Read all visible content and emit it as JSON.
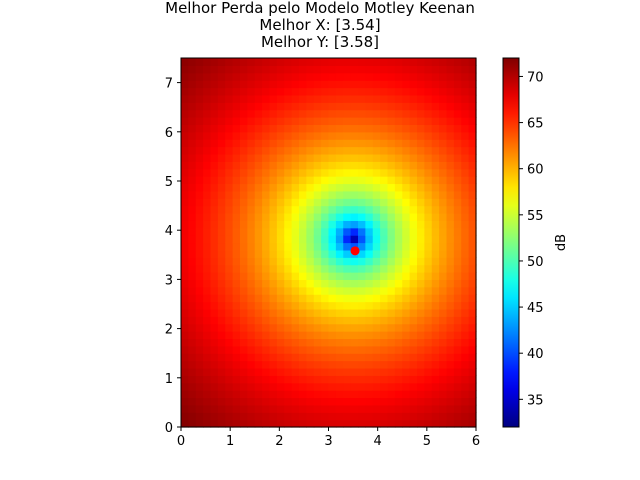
{
  "title_lines": [
    "Melhor Perda pelo Modelo Motley Keenan",
    "Melhor X: [3.54]",
    "Melhor Y: [3.58]"
  ],
  "chart_data": {
    "type": "heatmap",
    "title": "Melhor Perda pelo Modelo Motley Keenan",
    "subtitle": [
      "Melhor X: [3.54]",
      "Melhor Y: [3.58]"
    ],
    "xlabel": "",
    "ylabel": "",
    "xlim": [
      0,
      6
    ],
    "ylim": [
      0,
      7.5
    ],
    "x_ticks": [
      0,
      1,
      2,
      3,
      4,
      5,
      6
    ],
    "y_ticks": [
      0,
      1,
      2,
      3,
      4,
      5,
      6,
      7
    ],
    "grid": false,
    "colormap": "jet",
    "colorbar": {
      "label": "dB",
      "min": 32,
      "max": 72,
      "ticks": [
        35,
        40,
        45,
        50,
        55,
        60,
        65,
        70
      ]
    },
    "field": {
      "source_x": 3.5,
      "source_y": 3.85,
      "min_loss": 32,
      "max_loss": 72,
      "grid_step": 0.15
    },
    "marker": {
      "x": 3.54,
      "y": 3.58,
      "color": "#ff0000"
    }
  }
}
